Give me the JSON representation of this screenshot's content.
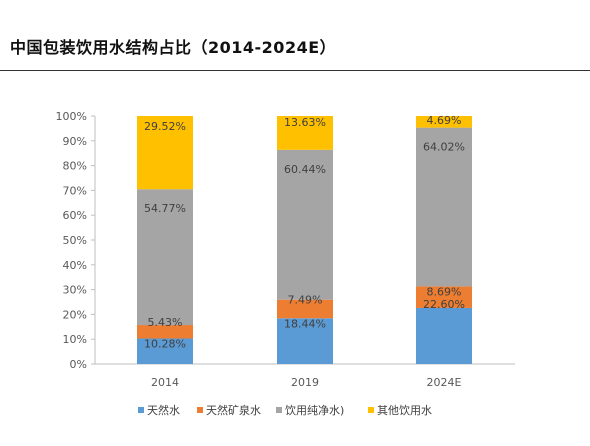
{
  "title": "中国包装饮用水结构占比（2014-2024E）",
  "chart_data": {
    "type": "bar",
    "stacked": true,
    "percent": true,
    "categories": [
      "2014",
      "2019",
      "2024E"
    ],
    "series": [
      {
        "name": "天然水",
        "color": "#5B9BD5",
        "values": [
          10.28,
          18.44,
          22.6
        ],
        "labels": [
          "10.28%",
          "18.44%",
          "22.60%"
        ]
      },
      {
        "name": "天然矿泉水",
        "color": "#ED7D31",
        "values": [
          5.43,
          7.49,
          8.69
        ],
        "labels": [
          "5.43%",
          "7.49%",
          "8.69%"
        ]
      },
      {
        "name": "饮用纯净水)",
        "color": "#A5A5A5",
        "values": [
          54.77,
          60.44,
          64.02
        ],
        "labels": [
          "54.77%",
          "60.44%",
          "64.02%"
        ]
      },
      {
        "name": "其他饮用水",
        "color": "#FFC000",
        "values": [
          29.52,
          13.63,
          4.69
        ],
        "labels": [
          "29.52%",
          "13.63%",
          "4.69%"
        ]
      }
    ],
    "y_ticks": [
      "0%",
      "10%",
      "20%",
      "30%",
      "40%",
      "50%",
      "60%",
      "70%",
      "80%",
      "90%",
      "100%"
    ],
    "ylim": [
      0,
      100
    ],
    "legend": "bottom",
    "grid": false
  }
}
